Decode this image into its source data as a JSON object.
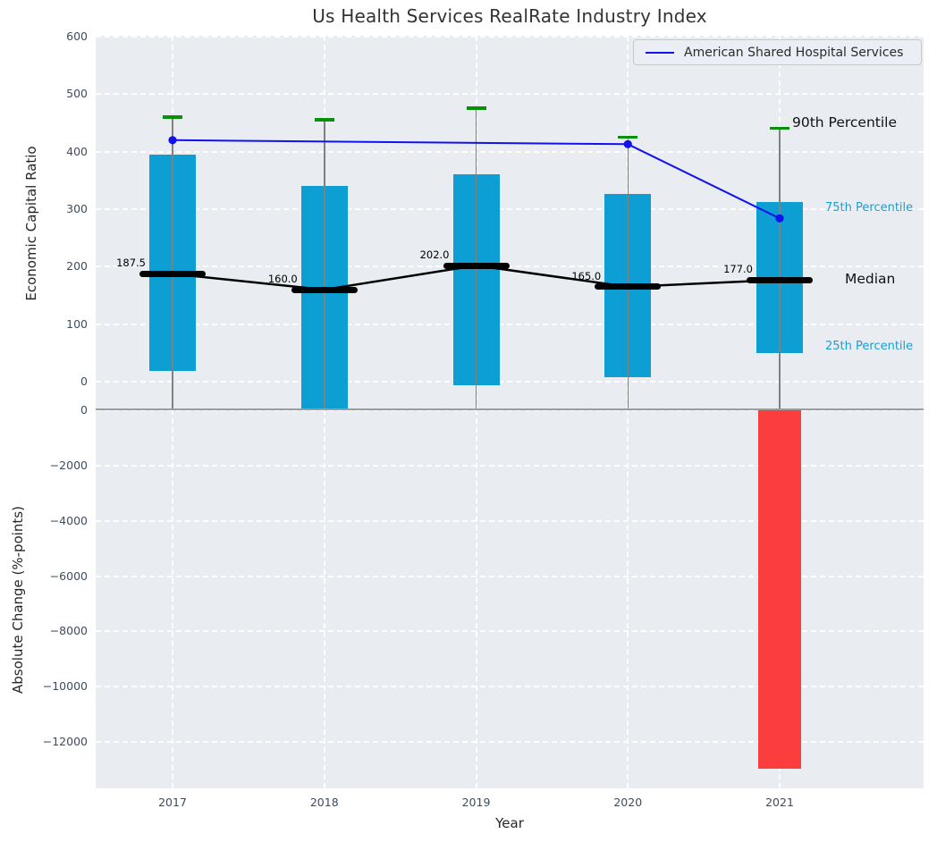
{
  "title": "Us Health Services RealRate Industry Index",
  "legend": {
    "label": "American Shared Hospital Services"
  },
  "annotations": {
    "p90": "90th Percentile",
    "p75": "75th Percentile",
    "median": "Median",
    "p25": "25th Percentile"
  },
  "colors": {
    "percentile_bar": "#0d9ed3",
    "negative_change_bar": "#fa3d3d",
    "p90_cap": "#0a8f0a",
    "company_line": "#1212ee",
    "median": "#000000",
    "whisker": "#808080",
    "cyan_text": "#1a9fd4",
    "plot_background": "#e9edf1"
  },
  "chart_data": [
    {
      "type": "bar",
      "subtype": "percentile-range-with-median",
      "title": "Us Health Services RealRate Industry Index",
      "ylabel": "Economic Capital Ratio",
      "categories": [
        "2017",
        "2018",
        "2019",
        "2020",
        "2021"
      ],
      "yticks": [
        0,
        100,
        200,
        300,
        400,
        500,
        600
      ],
      "ytick_labels": [
        "0",
        "100",
        "200",
        "300",
        "400",
        "500",
        "600"
      ],
      "ylim": [
        -50,
        605
      ],
      "grid": true,
      "series": [
        {
          "name": "25th Percentile",
          "values": [
            19,
            -50,
            -6,
            7,
            50
          ]
        },
        {
          "name": "75th Percentile",
          "values": [
            395,
            341,
            360,
            326,
            313
          ]
        },
        {
          "name": "90th Percentile",
          "values": [
            460,
            455,
            475,
            425,
            440
          ]
        },
        {
          "name": "Median",
          "values": [
            187.5,
            160.0,
            202.0,
            165.0,
            177.0
          ]
        }
      ],
      "median_labels": [
        "187.5",
        "160.0",
        "202.0",
        "165.0",
        "177.0"
      ],
      "company_line": {
        "name": "American Shared Hospital Services",
        "x": [
          "2017",
          "2020",
          "2021"
        ],
        "values": [
          420,
          413,
          284
        ],
        "legend_position": "upper right"
      }
    },
    {
      "type": "bar",
      "ylabel": "Absolute Change (%-points)",
      "xlabel": "Year",
      "categories": [
        "2017",
        "2018",
        "2019",
        "2020",
        "2021"
      ],
      "values": [
        null,
        null,
        null,
        null,
        -12980
      ],
      "yticks": [
        0,
        -2000,
        -4000,
        -6000,
        -8000,
        -10000,
        -12000
      ],
      "ytick_labels": [
        "0",
        "−2000",
        "−4000",
        "−6000",
        "−8000",
        "−10000",
        "−12000"
      ],
      "ylim": [
        -13650,
        0
      ],
      "grid": true
    }
  ]
}
